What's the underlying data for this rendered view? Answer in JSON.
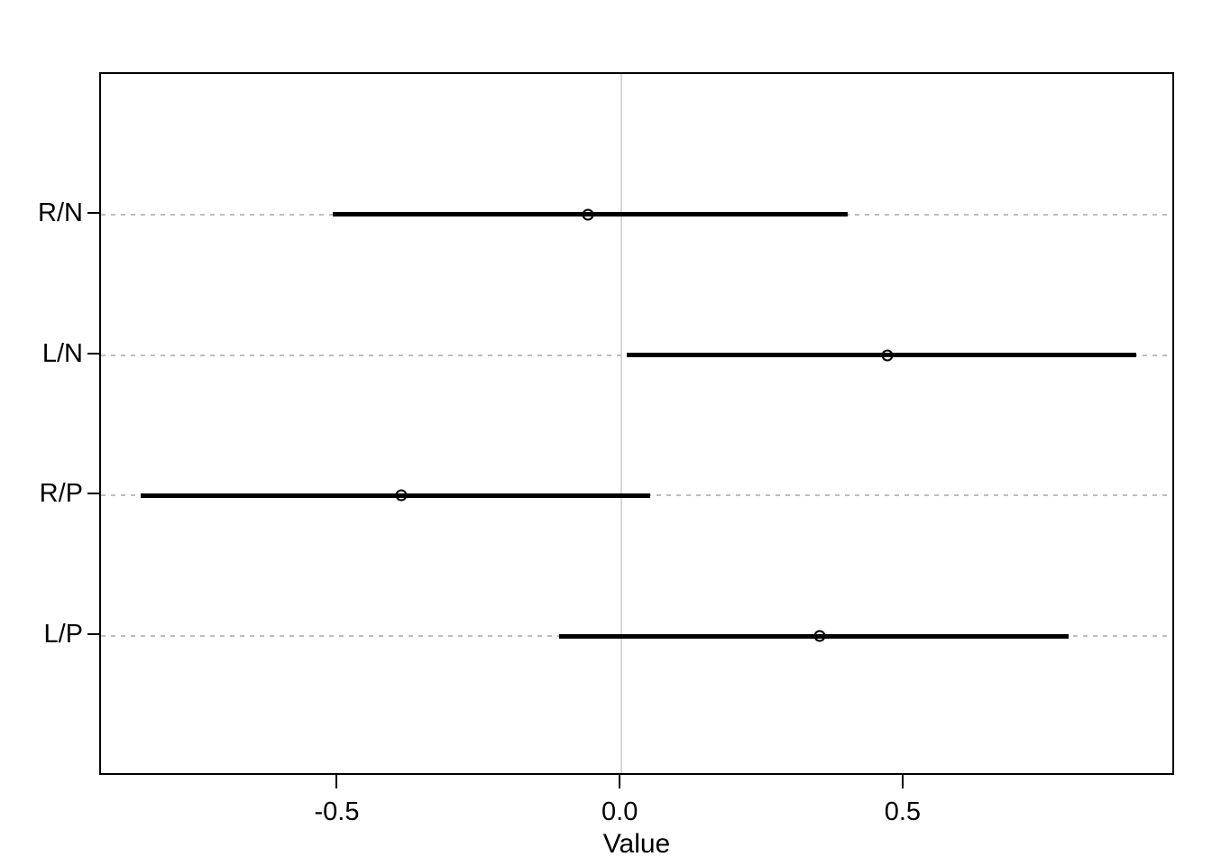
{
  "chart_data": {
    "type": "scatter",
    "subtype": "dotplot-with-intervals",
    "orientation": "horizontal",
    "title": "",
    "xlabel": "Value",
    "ylabel": "",
    "categories": [
      "R/N",
      "L/N",
      "R/P",
      "L/P"
    ],
    "series": [
      {
        "name": "estimate-with-interval",
        "values": [
          -0.06,
          0.47,
          -0.39,
          0.35
        ],
        "lower": [
          -0.51,
          0.01,
          -0.85,
          -0.11
        ],
        "upper": [
          0.4,
          0.91,
          0.05,
          0.79
        ]
      }
    ],
    "xticks": [
      -0.5,
      0.0,
      0.5
    ],
    "xtick_labels": [
      "-0.5",
      "0.0",
      "0.5"
    ],
    "xlim": [
      -0.92,
      0.98
    ],
    "grid": {
      "horizontal_reference_lines": "dotted",
      "zero_reference_line": true,
      "legend": "none"
    },
    "marker_style": "open-circle",
    "colors": {
      "segment": "#000000",
      "marker_stroke": "#000000",
      "gridline": "#bdbdbd",
      "zero_line": "#d8d8d8",
      "axis": "#000000",
      "text": "#000000",
      "background": "#ffffff"
    }
  }
}
